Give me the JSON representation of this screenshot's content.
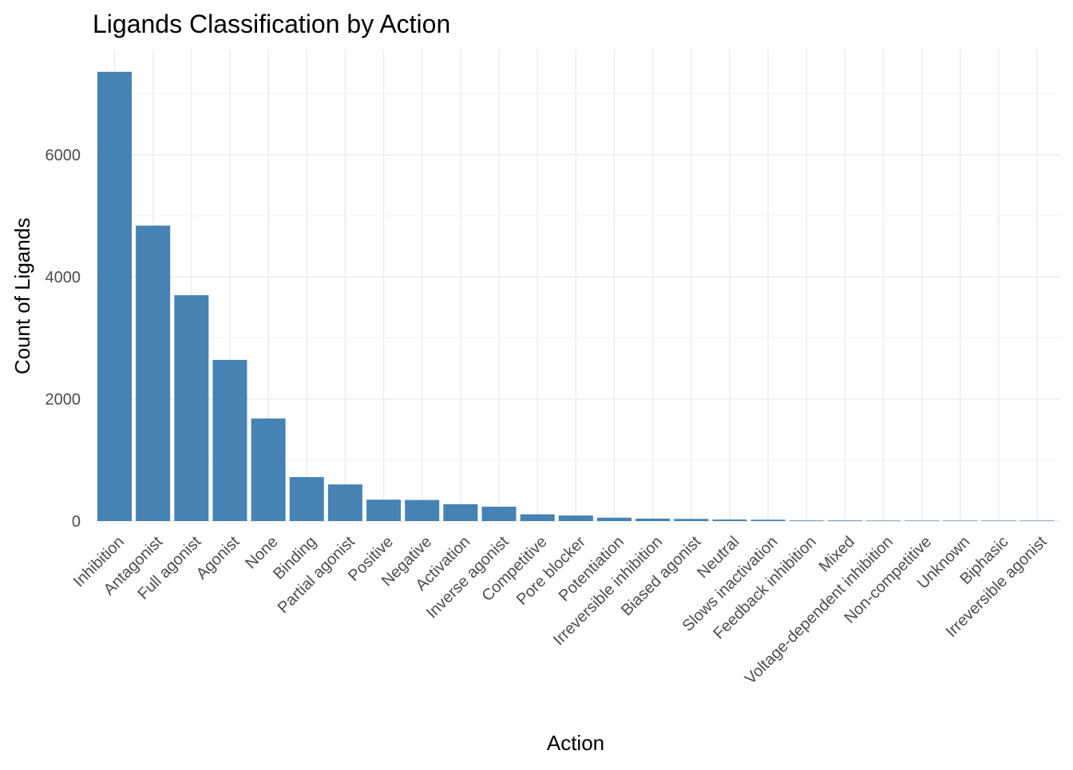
{
  "chart_data": {
    "type": "bar",
    "title": "Ligands Classification by Action",
    "xlabel": "Action",
    "ylabel": "Count of Ligands",
    "categories": [
      "Inhibition",
      "Antagonist",
      "Full agonist",
      "Agonist",
      "None",
      "Binding",
      "Partial agonist",
      "Positive",
      "Negative",
      "Activation",
      "Inverse agonist",
      "Competitive",
      "Pore blocker",
      "Potentiation",
      "Irreversible inhibition",
      "Biased agonist",
      "Neutral",
      "Slows inactivation",
      "Feedback inhibition",
      "Mixed",
      "Voltage-dependent inhibition",
      "Non-competitive",
      "Unknown",
      "Biphasic",
      "Irreversible agonist"
    ],
    "values": [
      7360,
      4840,
      3700,
      2640,
      1680,
      720,
      600,
      350,
      345,
      275,
      235,
      110,
      90,
      55,
      40,
      35,
      25,
      22,
      10,
      10,
      8,
      7,
      5,
      2,
      1
    ],
    "ylim": [
      0,
      7360
    ],
    "yticks": [
      0,
      2000,
      4000,
      6000
    ],
    "grid": true,
    "legend": "none",
    "bar_color": "#4682B4"
  }
}
